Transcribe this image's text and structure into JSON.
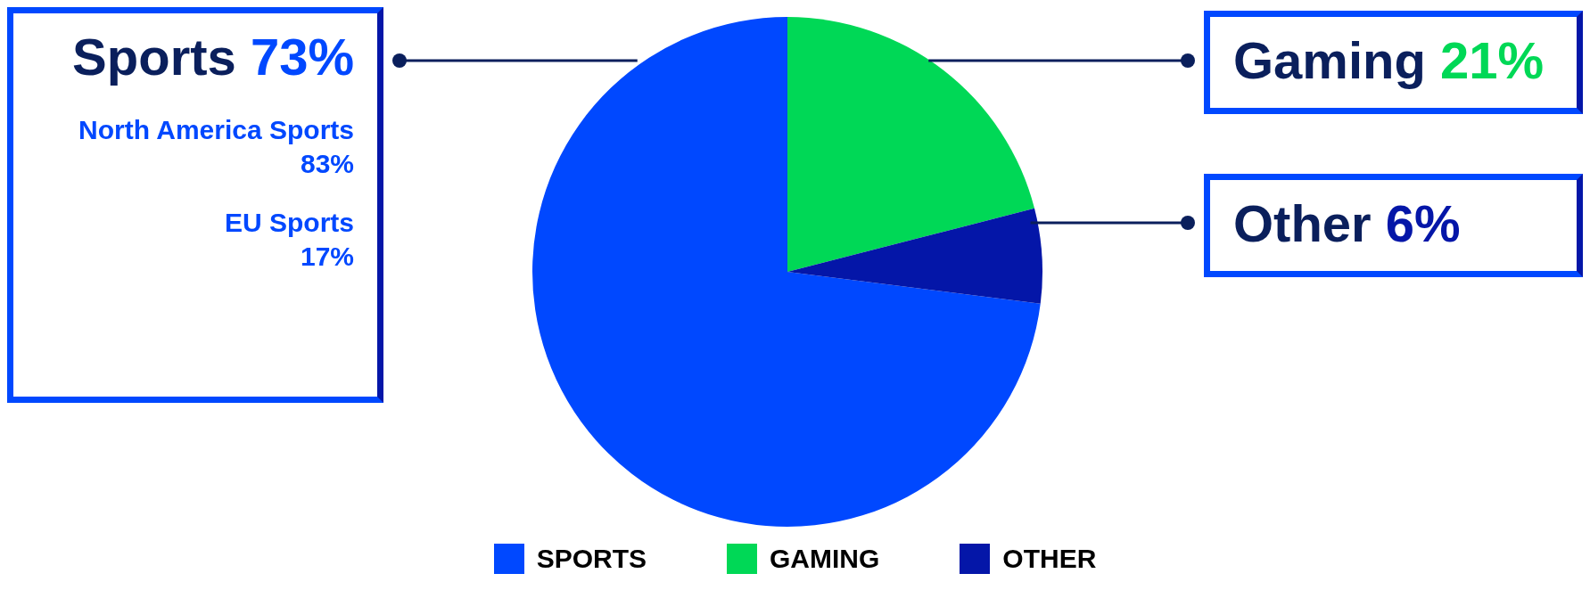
{
  "chart_data": {
    "type": "pie",
    "categories": [
      "SPORTS",
      "GAMING",
      "OTHER"
    ],
    "values": [
      73,
      21,
      6
    ],
    "colors": [
      "#0048ff",
      "#00d856",
      "#0416a8"
    ],
    "value_labels": [
      "Sports 73%",
      "Gaming 21%",
      "Other 6%"
    ],
    "annotations": [
      "North America Sports\n83%",
      "EU Sports\n17%"
    ],
    "legend": "bottom"
  }
}
